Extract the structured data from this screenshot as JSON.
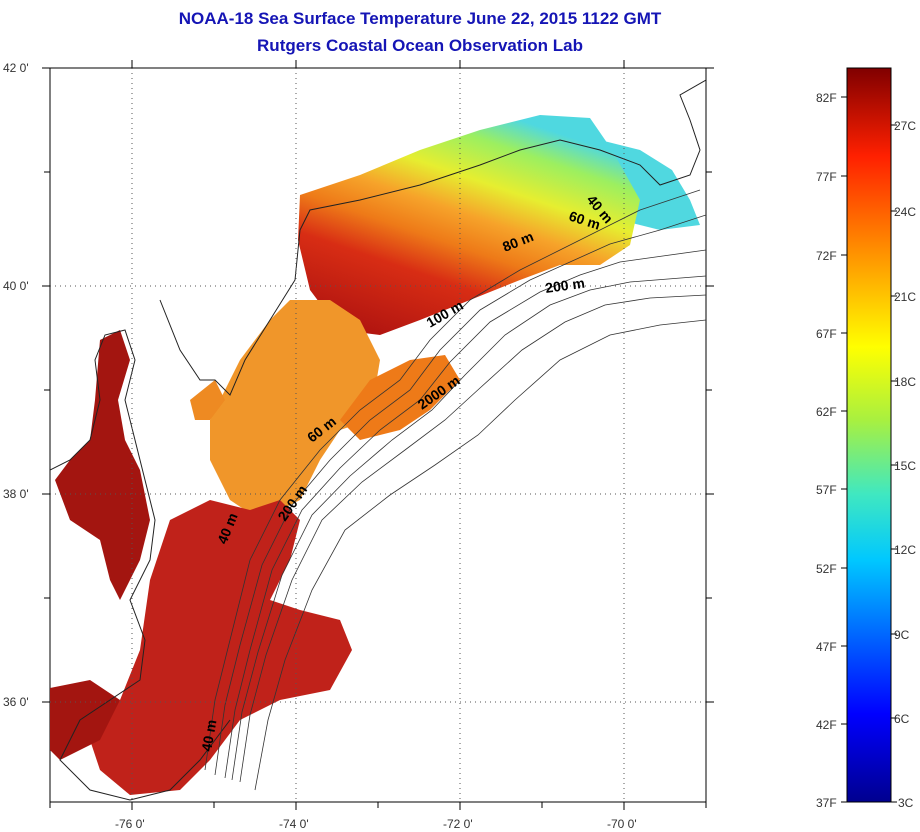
{
  "title": {
    "line1": "NOAA-18 Sea Surface Temperature June 22, 2015 1122 GMT",
    "line2": "Rutgers Coastal Ocean Observation Lab"
  },
  "axes": {
    "lat_labels": [
      "42 0'",
      "40 0'",
      "38 0'",
      "36 0'"
    ],
    "lon_labels": [
      "-76 0'",
      "-74 0'",
      "-72 0'",
      "-70 0'"
    ]
  },
  "contour_labels": [
    "40 m",
    "60 m",
    "80 m",
    "100 m",
    "200 m",
    "2000 m",
    "60 m",
    "200 m",
    "40 m",
    "40 m"
  ],
  "colorbar": {
    "f_labels": [
      "82F",
      "77F",
      "72F",
      "67F",
      "62F",
      "57F",
      "52F",
      "47F",
      "42F",
      "37F"
    ],
    "c_labels": [
      "27C",
      "24C",
      "21C",
      "18C",
      "15C",
      "12C",
      "9C",
      "6C",
      "3C"
    ]
  },
  "colors": {
    "title": "#1515b5",
    "land": "#ffffff",
    "warm": "#b81a10",
    "mid": "#ee7a18",
    "cool": "#b8e830",
    "cold": "#2fc8e8"
  }
}
